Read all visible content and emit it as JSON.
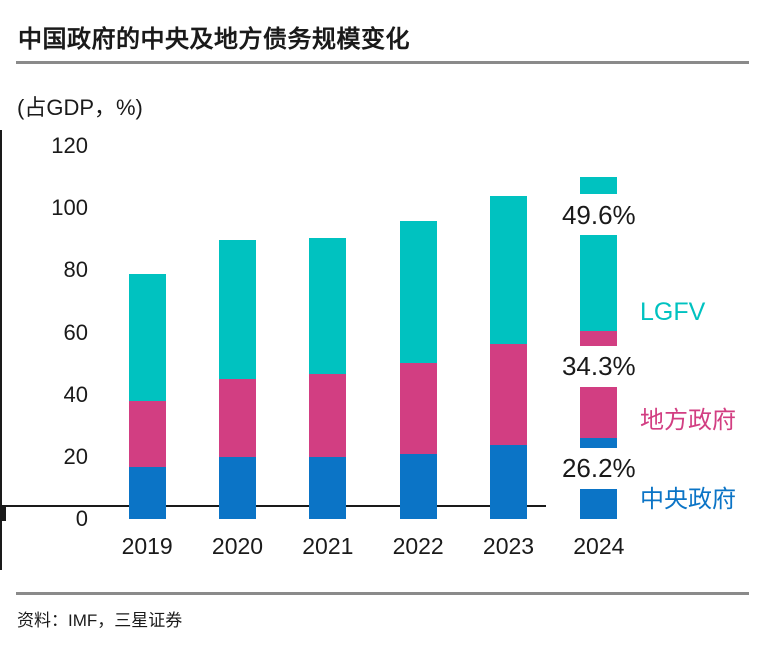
{
  "title": "中国政府的中央及地方债务规模变化",
  "unit_label": "(占GDP，%)",
  "source": "资料：IMF，三星证券",
  "colors": {
    "central": "#0B74C6",
    "local": "#D23E82",
    "lgfv": "#00C2C0",
    "text": "#1a1a1a",
    "axis": "#1a1a1a",
    "rule": "#8a8a8a",
    "label_background": "#ffffff"
  },
  "chart_data": {
    "type": "bar",
    "stacked": true,
    "title": "中国政府的中央及地方债务规模变化",
    "ylabel": "(占GDP，%)",
    "xlabel": "",
    "categories": [
      "2019",
      "2020",
      "2021",
      "2022",
      "2023",
      "2024"
    ],
    "series": [
      {
        "name": "中央政府",
        "color_key": "central",
        "values": [
          16.7,
          20.1,
          20.0,
          20.9,
          23.8,
          26.2
        ]
      },
      {
        "name": "地方政府",
        "color_key": "local",
        "values": [
          21.3,
          24.9,
          26.7,
          29.3,
          32.5,
          34.3
        ]
      },
      {
        "name": "LGFV",
        "color_key": "lgfv",
        "values": [
          40.8,
          44.8,
          43.6,
          45.8,
          47.6,
          49.6
        ]
      }
    ],
    "totals": [
      78.8,
      89.8,
      90.3,
      96.0,
      103.9,
      110.1
    ],
    "ylim": [
      0,
      120
    ],
    "yticks": [
      0,
      20,
      40,
      60,
      80,
      100,
      120
    ],
    "grid": false,
    "legend_position": "right",
    "legend": [
      {
        "label": "LGFV",
        "color_key": "lgfv",
        "anchor_value": 66.6
      },
      {
        "label": "地方政府",
        "color_key": "local",
        "anchor_value": 31.5
      },
      {
        "label": "中央政府",
        "color_key": "central",
        "anchor_value": 6.2
      }
    ],
    "annotations": [
      {
        "text": "49.6%",
        "category": "2024",
        "series": "LGFV",
        "anchor_value": 97.9
      },
      {
        "text": "34.3%",
        "category": "2024",
        "series": "地方政府",
        "anchor_value": 49.2
      },
      {
        "text": "26.2%",
        "category": "2024",
        "series": "中央政府",
        "anchor_value": 16.4
      }
    ]
  }
}
